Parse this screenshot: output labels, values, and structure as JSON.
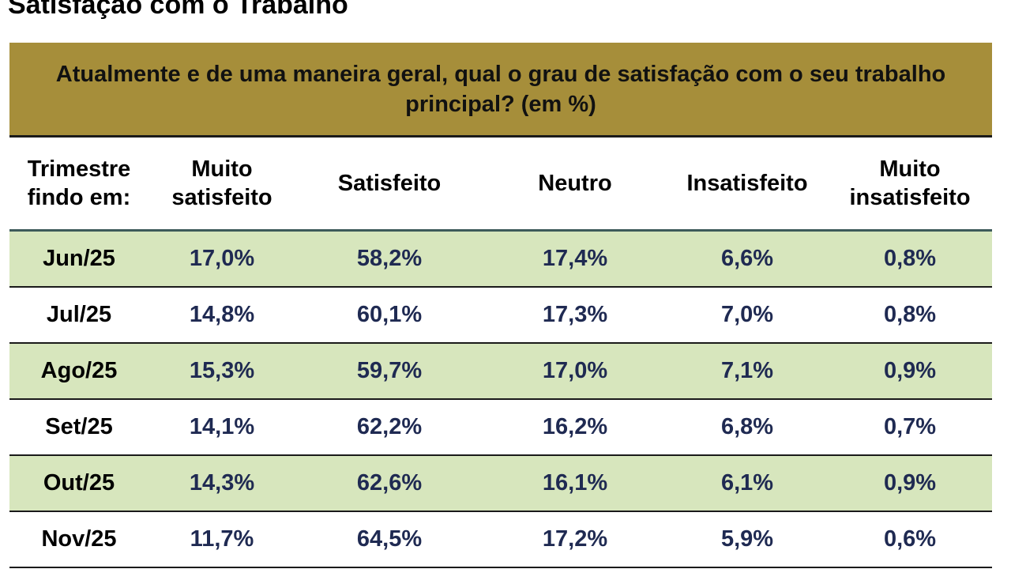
{
  "page": {
    "title": "Satisfação com o Trabalho"
  },
  "table": {
    "question": "Atualmente e de uma maneira geral, qual o grau de satisfação com o seu trabalho principal? (em %)",
    "headers": {
      "period_line1": "Trimestre",
      "period_line2": "findo em:",
      "muito_satisfeito_line1": "Muito",
      "muito_satisfeito_line2": "satisfeito",
      "satisfeito": "Satisfeito",
      "neutro": "Neutro",
      "insatisfeito": "Insatisfeito",
      "muito_insatisfeito_line1": "Muito",
      "muito_insatisfeito_line2": "insatisfeito"
    },
    "rows": [
      {
        "period": "Jun/25",
        "muito_satisfeito": "17,0%",
        "satisfeito": "58,2%",
        "neutro": "17,4%",
        "insatisfeito": "6,6%",
        "muito_insatisfeito": "0,8%"
      },
      {
        "period": "Jul/25",
        "muito_satisfeito": "14,8%",
        "satisfeito": "60,1%",
        "neutro": "17,3%",
        "insatisfeito": "7,0%",
        "muito_insatisfeito": "0,8%"
      },
      {
        "period": "Ago/25",
        "muito_satisfeito": "15,3%",
        "satisfeito": "59,7%",
        "neutro": "17,0%",
        "insatisfeito": "7,1%",
        "muito_insatisfeito": "0,9%"
      },
      {
        "period": "Set/25",
        "muito_satisfeito": "14,1%",
        "satisfeito": "62,2%",
        "neutro": "16,2%",
        "insatisfeito": "6,8%",
        "muito_insatisfeito": "0,7%"
      },
      {
        "period": "Out/25",
        "muito_satisfeito": "14,3%",
        "satisfeito": "62,6%",
        "neutro": "16,1%",
        "insatisfeito": "6,1%",
        "muito_insatisfeito": "0,9%"
      },
      {
        "period": "Nov/25",
        "muito_satisfeito": "11,7%",
        "satisfeito": "64,5%",
        "neutro": "17,2%",
        "insatisfeito": "5,9%",
        "muito_insatisfeito": "0,6%"
      }
    ]
  },
  "colors": {
    "banner": "#a68e3a",
    "row_shade": "#d7e6bd",
    "value_text": "#1f2a52"
  }
}
